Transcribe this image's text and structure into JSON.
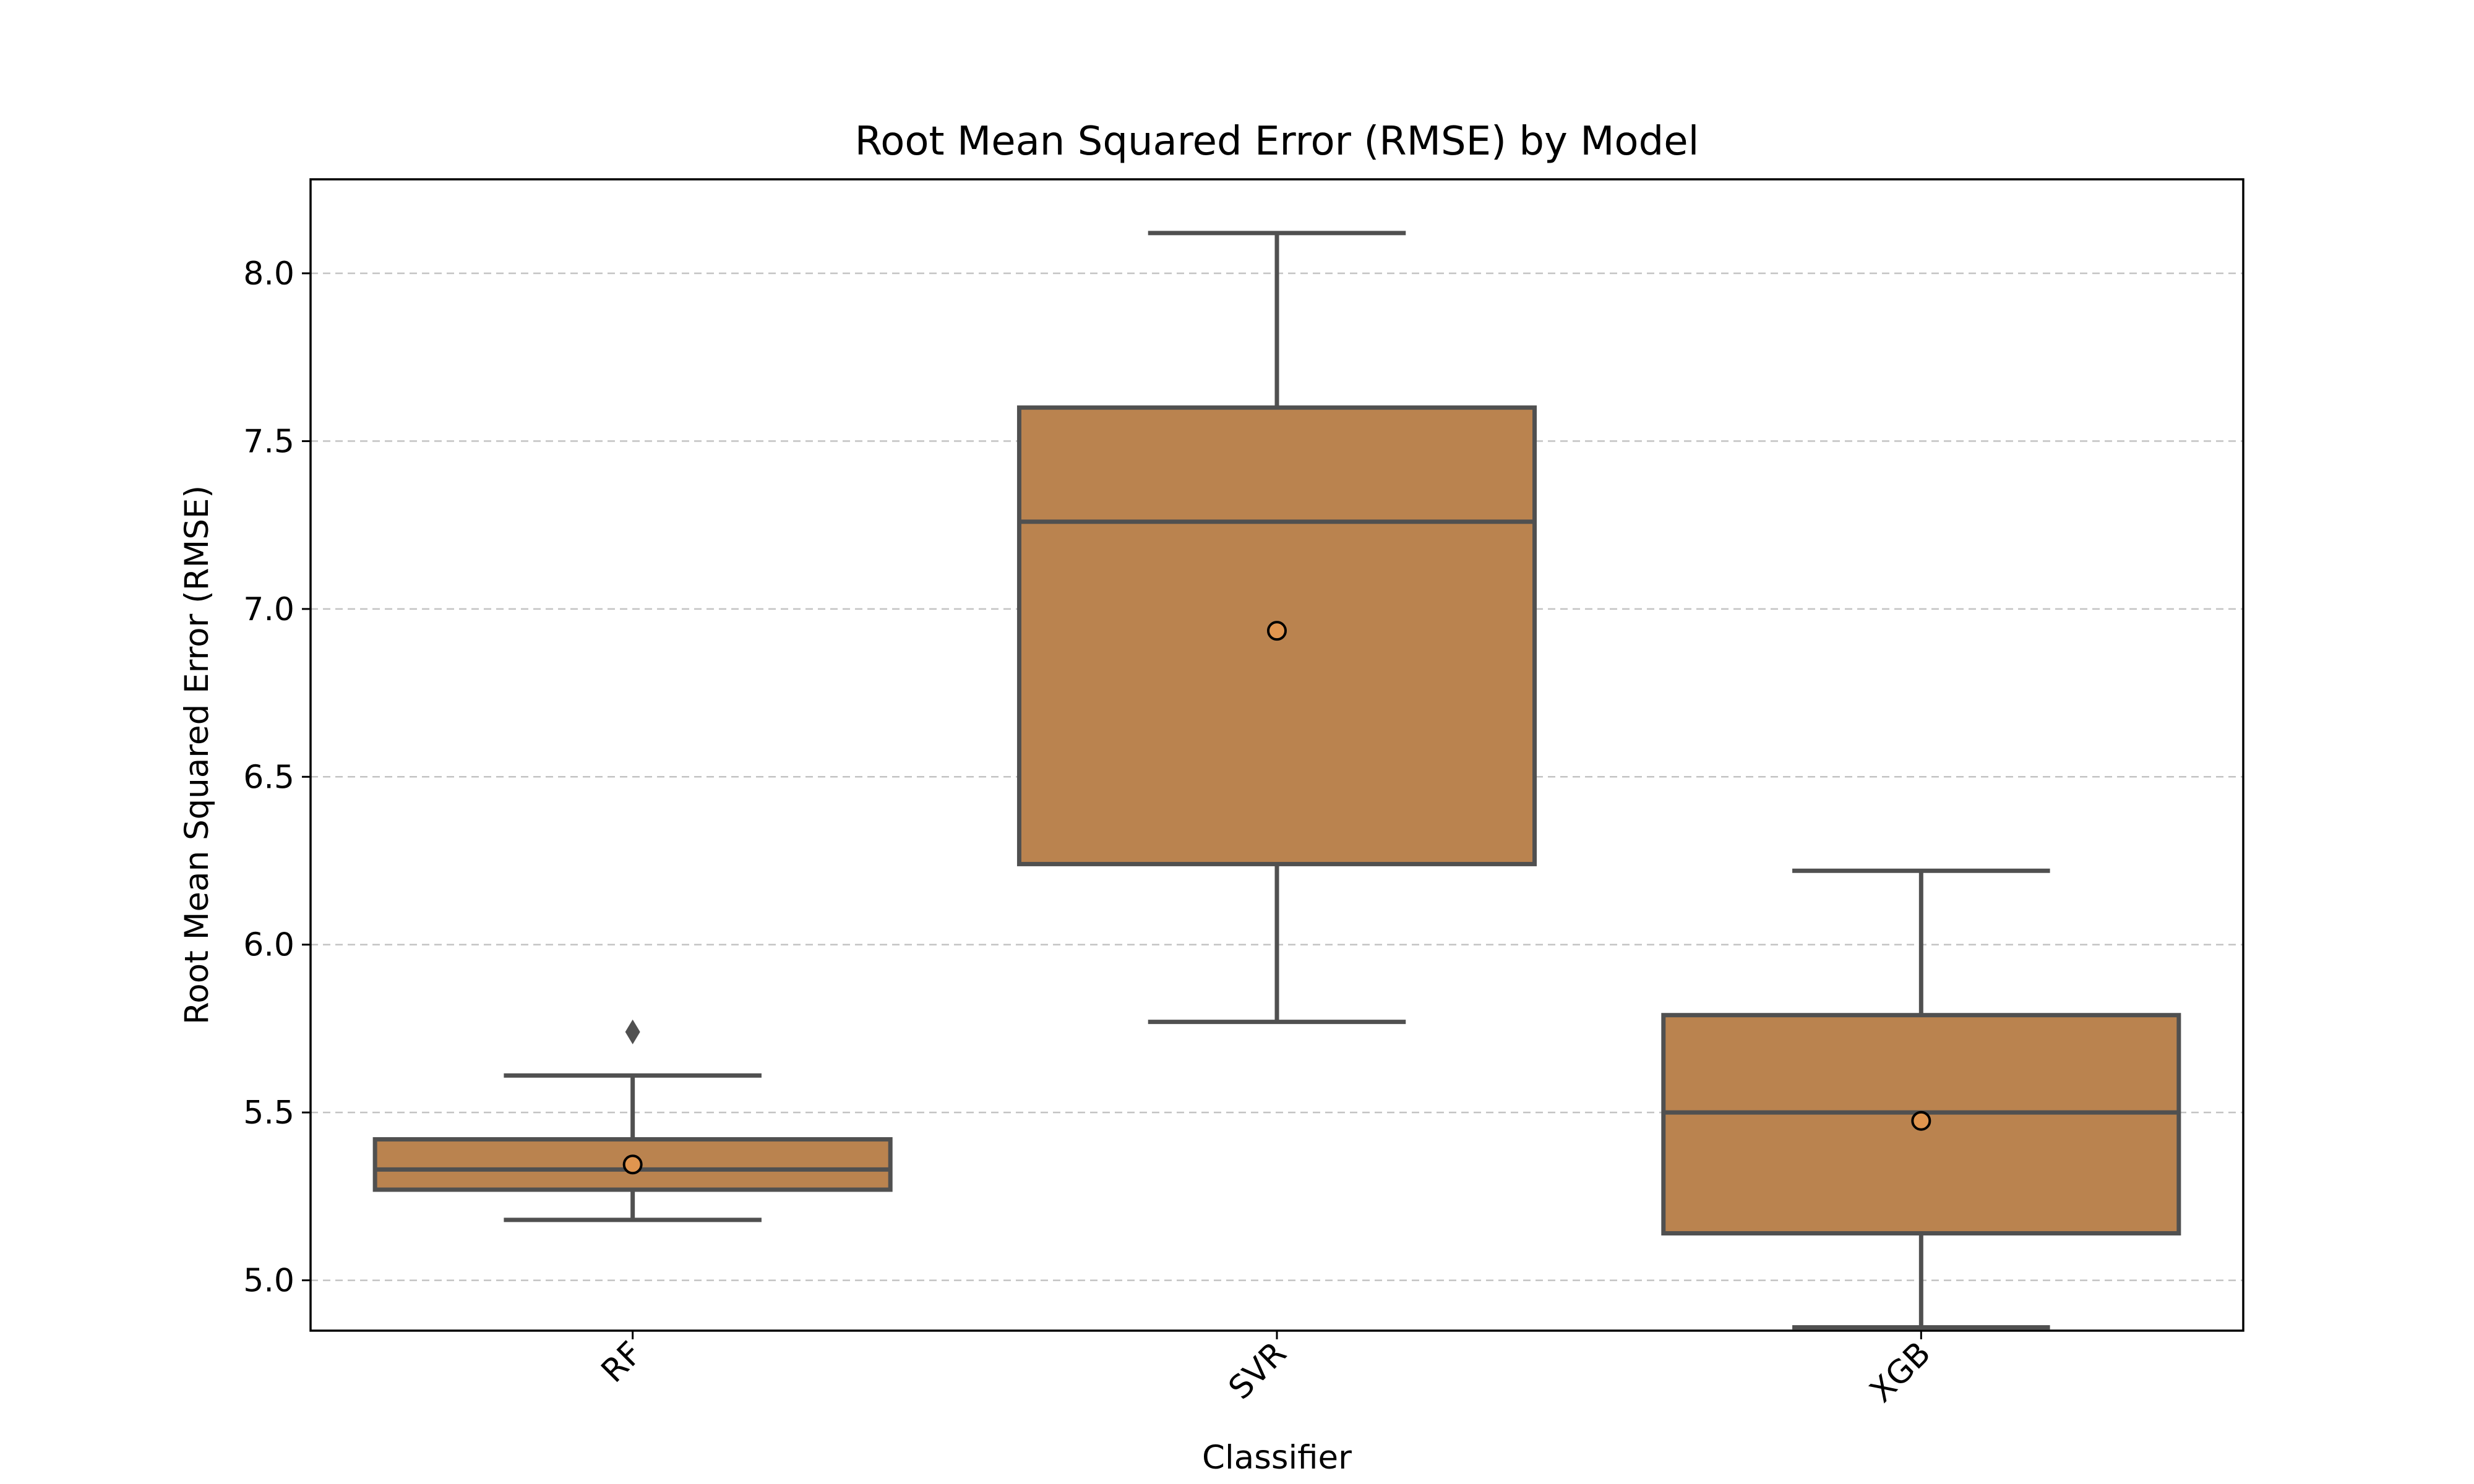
{
  "chart_data": {
    "type": "box",
    "title": "Root Mean Squared Error (RMSE) by Model",
    "xlabel": "Classifier",
    "ylabel": "Root Mean Squared Error (RMSE)",
    "categories": [
      "RF",
      "SVR",
      "XGB"
    ],
    "ylim": [
      4.85,
      8.28
    ],
    "yticks": [
      5.0,
      5.5,
      6.0,
      6.5,
      7.0,
      7.5,
      8.0
    ],
    "ytick_labels": [
      "5.0",
      "5.5",
      "6.0",
      "6.5",
      "7.0",
      "7.5",
      "8.0"
    ],
    "grid": "y-dashed",
    "boxes": [
      {
        "category": "RF",
        "whisker_low": 5.18,
        "q1": 5.27,
        "median": 5.33,
        "q3": 5.42,
        "whisker_high": 5.61,
        "mean": 5.345,
        "outliers": [
          5.74
        ]
      },
      {
        "category": "SVR",
        "whisker_low": 5.77,
        "q1": 6.24,
        "median": 7.26,
        "q3": 7.6,
        "whisker_high": 8.12,
        "mean": 6.935,
        "outliers": []
      },
      {
        "category": "XGB",
        "whisker_low": 4.86,
        "q1": 5.14,
        "median": 5.5,
        "q3": 5.79,
        "whisker_high": 6.22,
        "mean": 5.475,
        "outliers": []
      }
    ],
    "colors": {
      "box_fill": "#BA834F",
      "box_edge": "#505050",
      "mean_marker": "#E0954F",
      "grid": "#B0B0B0",
      "frame": "#000000"
    }
  }
}
